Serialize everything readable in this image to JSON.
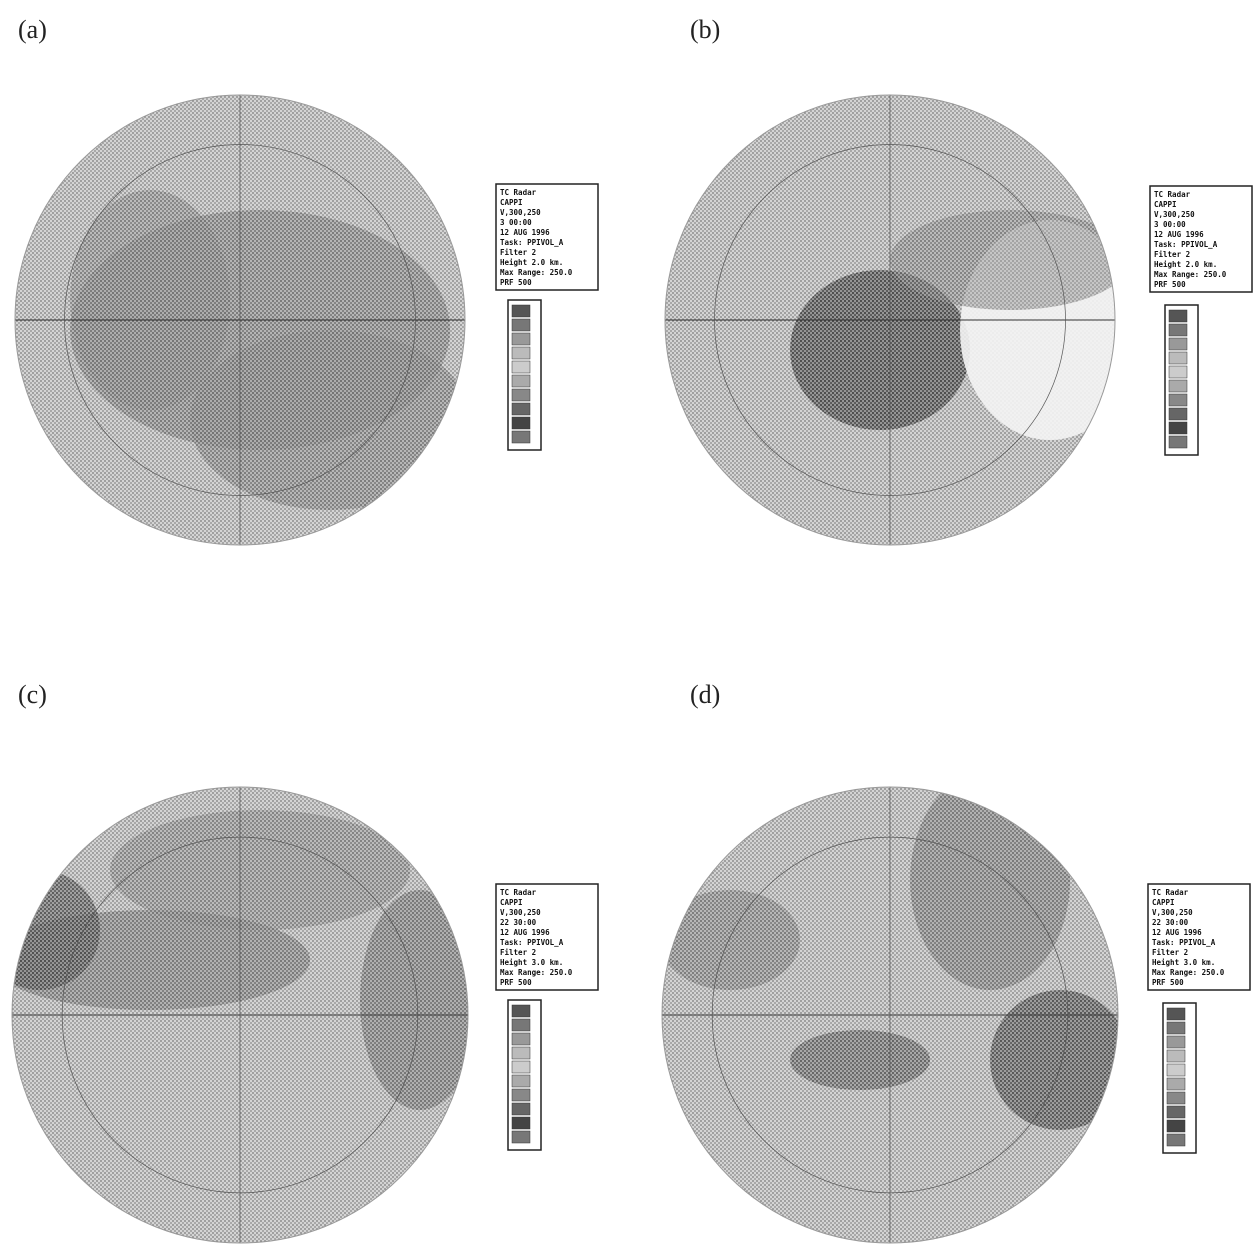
{
  "panels": [
    {
      "label": "(a)",
      "info": [
        "TC Radar",
        "CAPPI",
        "V,300,250",
        "3 00:00",
        "12 AUG 1996",
        "Task: PPIVOL_A",
        "Filter 2",
        "Height 2.0 km.",
        "Max Range: 250.0",
        "PRF 500"
      ]
    },
    {
      "label": "(b)",
      "info": [
        "TC Radar",
        "CAPPI",
        "V,300,250",
        "3 00:00",
        "12 AUG 1996",
        "Task: PPIVOL_A",
        "Filter 2",
        "Height 2.0 km.",
        "Max Range: 250.0",
        "PRF 500"
      ]
    },
    {
      "label": "(c)",
      "info": [
        "TC Radar",
        "CAPPI",
        "V,300,250",
        "22 30:00",
        "12 AUG 1996",
        "Task: PPIVOL_A",
        "Filter 2",
        "Height 3.0 km.",
        "Max Range: 250.0",
        "PRF 500"
      ]
    },
    {
      "label": "(d)",
      "info": [
        "TC Radar",
        "CAPPI",
        "V,300,250",
        "22 30:00",
        "12 AUG 1996",
        "Task: PPIVOL_A",
        "Filter 2",
        "Height 3.0 km.",
        "Max Range: 250.0",
        "PRF 500"
      ]
    }
  ]
}
